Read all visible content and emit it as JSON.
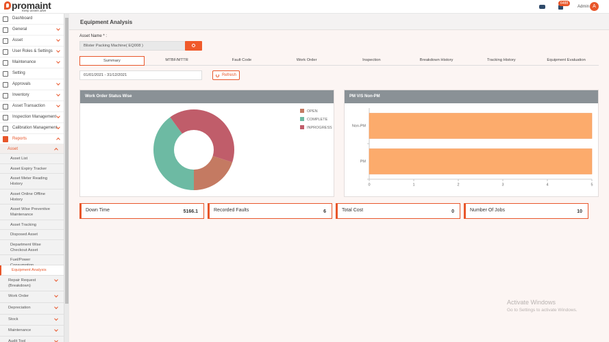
{
  "header": {
    "logo": "promaint",
    "tagline": "Keep assets alive",
    "notifications": "6488",
    "user": "Admin",
    "avatar": "A"
  },
  "sidebar": {
    "menu": [
      "Dashboard",
      "General",
      "Asset",
      "User Roles & Settings",
      "Maintenance",
      "Setting",
      "Approvals",
      "Inventory",
      "Asset Transaction",
      "Inspection Management",
      "Calibration Management"
    ],
    "open_menu": "Reports",
    "open_group": "Asset",
    "group_items": [
      "Asset List",
      "Asset Expiry Tracker",
      "Asset Meter Reading History",
      "Asset Online Offline History",
      "Asset Wise Preventive Maintenance",
      "Asset Tracking",
      "Disposed Asset",
      "Department Wise Checkout Asset",
      "Fuel/Power Consumption",
      "Equipment Analysis"
    ],
    "menu_after": [
      "Repair Request (Breakdown)",
      "Work Order",
      "Depreciation",
      "Stock",
      "Maintenance",
      "Audit Tool"
    ]
  },
  "page": {
    "title": "Equipment Analysis",
    "asset_label": "Asset Name * :",
    "asset_value": "Blister Packing Machine( EQ008 )",
    "tabs": [
      "Summary",
      "MTBF/MTTR",
      "Fault Code",
      "Work Order",
      "Inspection",
      "Breakdown History",
      "Tracking History",
      "Equipment Evaluation"
    ],
    "date_range": "01/01/2021 - 31/12/2021",
    "refresh": "Refresh"
  },
  "chart_data": [
    {
      "type": "pie",
      "title": "Work Order Status Wise",
      "categories": [
        "OPEN",
        "COMPLETE",
        "INPROGRESS"
      ],
      "values": [
        2,
        4,
        4
      ],
      "colors": [
        "#c47a62",
        "#6dbaa3",
        "#c05d6a"
      ],
      "donut": true
    },
    {
      "type": "bar",
      "orientation": "horizontal",
      "title": "PM V/S Non-PM",
      "categories": [
        "Non-PM",
        "PM"
      ],
      "values": [
        5,
        5
      ],
      "color": "#fcab6c",
      "xlim": [
        0,
        5
      ],
      "xticks": [
        0,
        1,
        2,
        3,
        4,
        5
      ]
    }
  ],
  "cards": [
    {
      "label": "Down Time",
      "value": 5166.1
    },
    {
      "label": "Recorded Faults",
      "value": 6
    },
    {
      "label": "Total Cost",
      "value": 0
    },
    {
      "label": "Number Of Jobs",
      "value": 10
    }
  ],
  "watermark": {
    "title": "Activate Windows",
    "text": "Go to Settings to activate Windows."
  }
}
